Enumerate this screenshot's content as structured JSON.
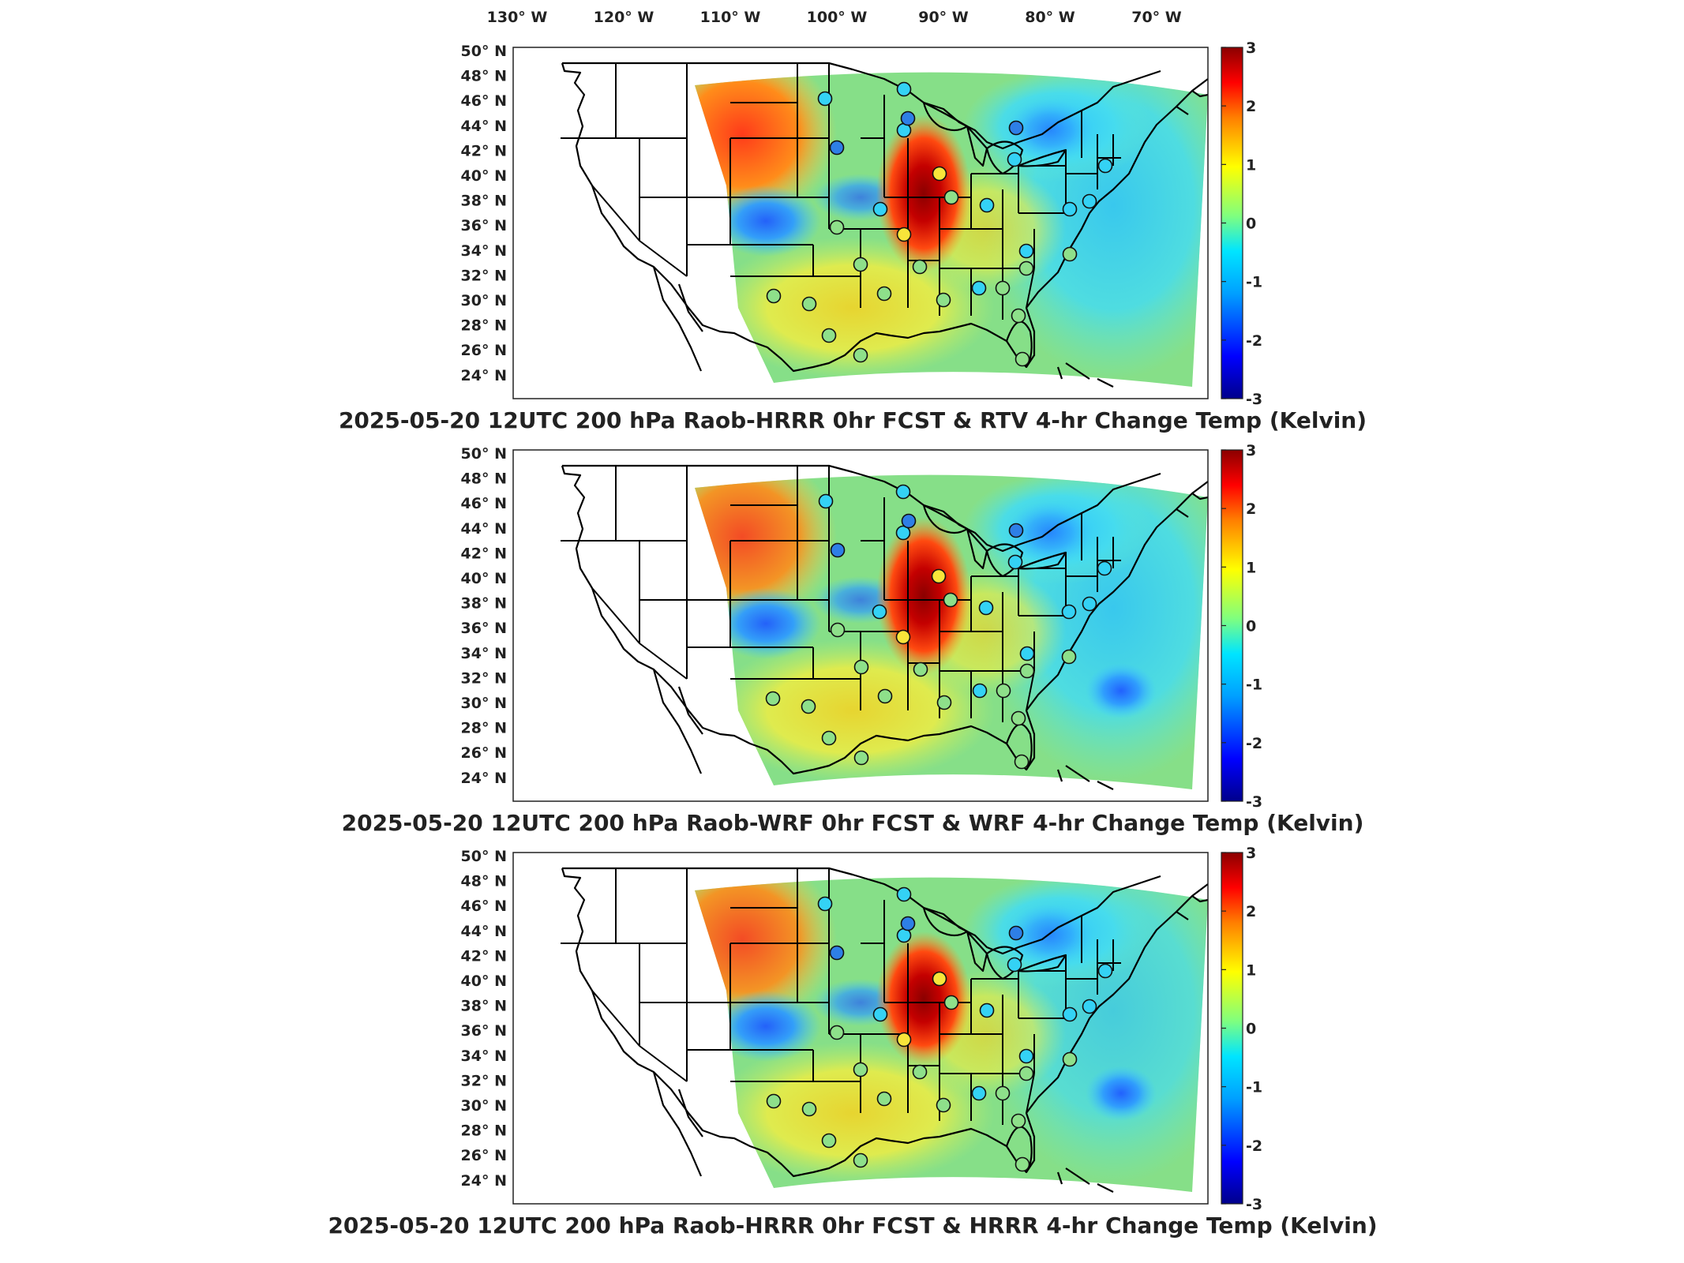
{
  "top_axis": {
    "longitude_labels": [
      "130° W",
      "120° W",
      "110° W",
      "100° W",
      "90° W",
      "80° W",
      "70° W"
    ]
  },
  "left_axis": {
    "latitude_labels": [
      "50° N",
      "48° N",
      "46° N",
      "44° N",
      "42° N",
      "40° N",
      "38° N",
      "36° N",
      "34° N",
      "32° N",
      "30° N",
      "28° N",
      "26° N",
      "24° N"
    ]
  },
  "colorbar": {
    "ticks": [
      "3",
      "2",
      "1",
      "0",
      "-1",
      "-2",
      "-3"
    ],
    "range": [
      -3,
      3
    ],
    "colormap": "jet"
  },
  "panels": [
    {
      "title": "2025-05-20 12UTC 200 hPa Raob-HRRR 0hr FCST & RTV 4-hr Change Temp (Kelvin)",
      "hotspot_value": 3,
      "coldspot_value": -1.6
    },
    {
      "title": "2025-05-20 12UTC 200 hPa Raob-WRF 0hr FCST & WRF 4-hr Change Temp (Kelvin)",
      "hotspot_value": 3,
      "coldspot_value": -1.7
    },
    {
      "title": "2025-05-20 12UTC 200 hPa Raob-HRRR 0hr FCST & HRRR 4-hr Change Temp (Kelvin)",
      "hotspot_value": 2.9,
      "coldspot_value": -1.5
    }
  ],
  "colors": {
    "dark_red": "#8b0000",
    "red": "#e31a1c",
    "orange": "#ff8c1a",
    "yellow": "#ffe74a",
    "green": "#7ee07a",
    "cyan": "#33d6ff",
    "blue": "#1f78ff",
    "dark_blue": "#00008b"
  }
}
